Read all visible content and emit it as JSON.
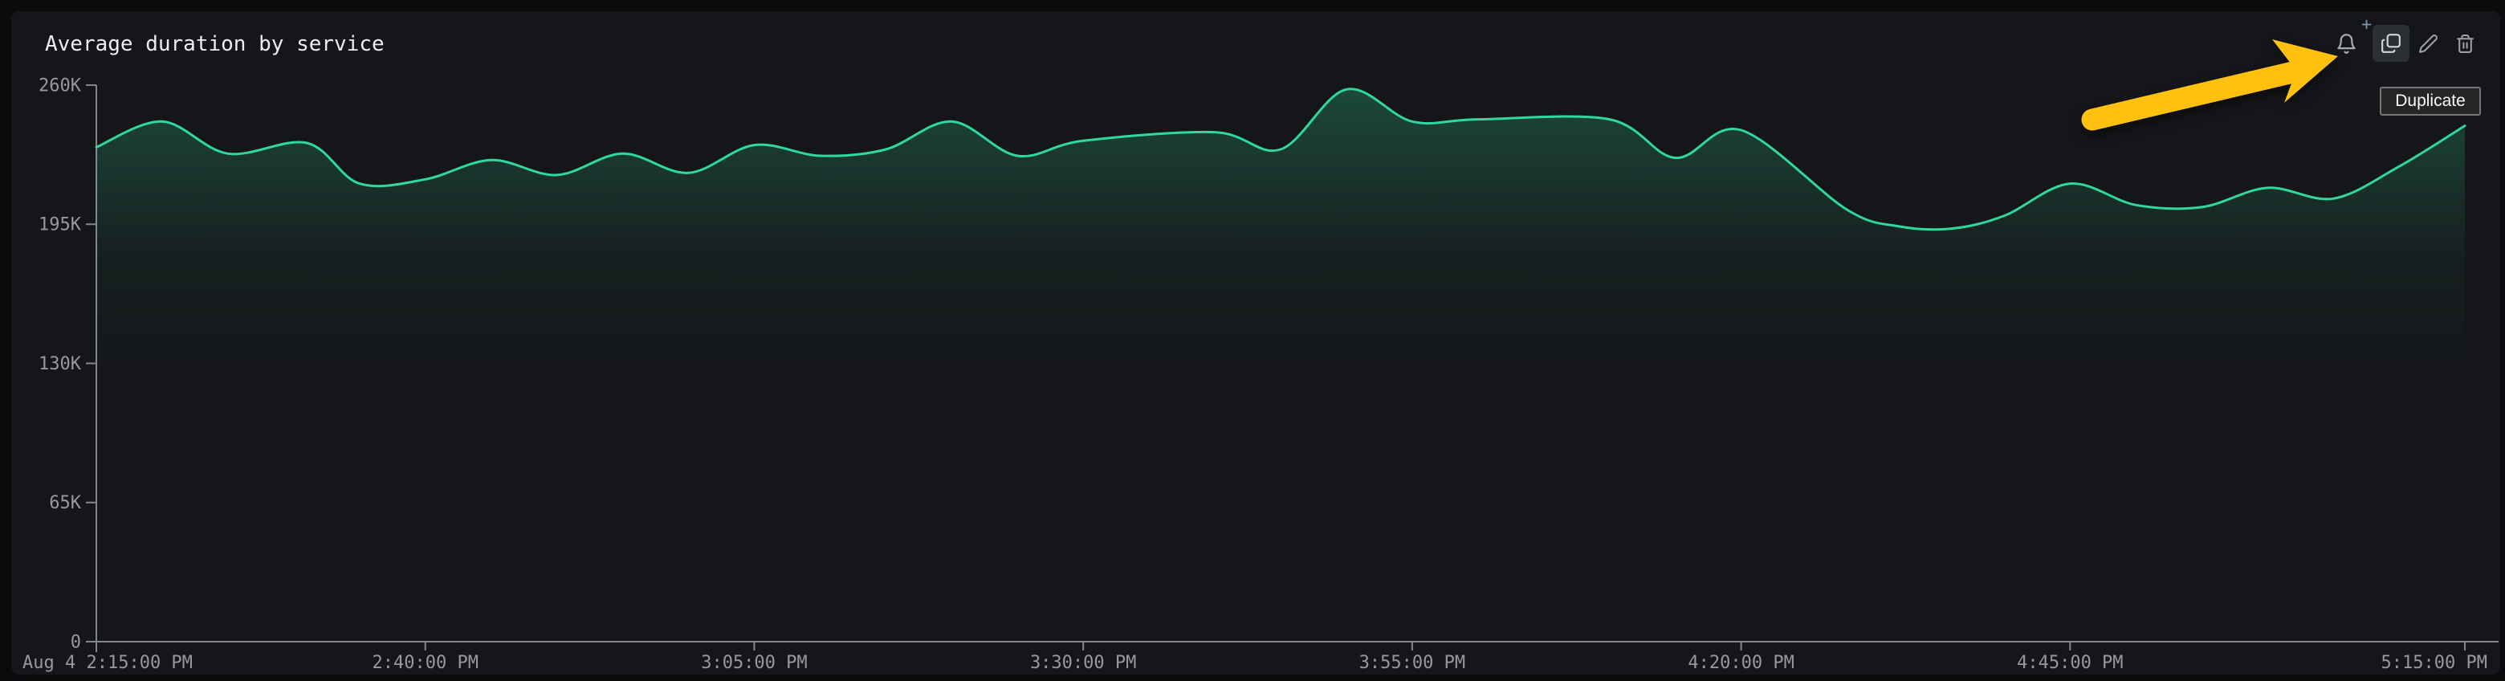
{
  "panel": {
    "title": "Average duration by service",
    "toolbar": {
      "tooltip": "Duplicate",
      "icons": [
        "bell-plus",
        "copy",
        "pencil",
        "trash"
      ],
      "icon_color": "#9ca0a4",
      "bell_color": "#a6aaae",
      "plus_color": "#7e95ad",
      "copy_color": "#d2d5d8",
      "hover_bg": "#2c2f31"
    },
    "annotation_arrow": {
      "color": "#ffc010",
      "points_at": "duplicate-button"
    }
  },
  "chart_data": {
    "type": "line",
    "title": "Average duration by service",
    "xlabel": "",
    "ylabel": "",
    "grid": false,
    "legend": false,
    "x_unit": "time",
    "y_unit": "duration",
    "x_start_label": "Aug 4 2:15:00 PM",
    "x_range_minutes": 180,
    "y_max_k": 260,
    "y_ticks": [
      {
        "label": "260K",
        "v": 260
      },
      {
        "label": "195K",
        "v": 195
      },
      {
        "label": "130K",
        "v": 130
      },
      {
        "label": "65K",
        "v": 65
      },
      {
        "label": "0",
        "v": 0
      }
    ],
    "x_ticks": [
      {
        "label": "2:40:00 PM",
        "m": 25
      },
      {
        "label": "3:05:00 PM",
        "m": 50
      },
      {
        "label": "3:30:00 PM",
        "m": 75
      },
      {
        "label": "3:55:00 PM",
        "m": 100
      },
      {
        "label": "4:20:00 PM",
        "m": 125
      },
      {
        "label": "4:45:00 PM",
        "m": 150
      },
      {
        "label": "5:15:00 PM",
        "m": 180
      }
    ],
    "series": [
      {
        "name": "Average duration",
        "color": "#2fd89c",
        "points_min_valueK": [
          [
            0,
            231
          ],
          [
            5,
            243
          ],
          [
            10,
            228
          ],
          [
            16,
            233
          ],
          [
            20,
            214
          ],
          [
            25,
            216
          ],
          [
            30,
            225
          ],
          [
            35,
            218
          ],
          [
            40,
            228
          ],
          [
            45,
            219
          ],
          [
            50,
            232
          ],
          [
            55,
            227
          ],
          [
            60,
            230
          ],
          [
            65,
            243
          ],
          [
            70,
            227
          ],
          [
            75,
            234
          ],
          [
            85,
            238
          ],
          [
            90,
            230
          ],
          [
            95,
            258
          ],
          [
            100,
            243
          ],
          [
            105,
            244
          ],
          [
            115,
            244
          ],
          [
            120,
            226
          ],
          [
            125,
            239
          ],
          [
            133,
            202
          ],
          [
            137,
            194
          ],
          [
            141,
            193
          ],
          [
            145,
            199
          ],
          [
            150,
            214
          ],
          [
            155,
            204
          ],
          [
            160,
            203
          ],
          [
            165,
            212
          ],
          [
            170,
            207
          ],
          [
            175,
            222
          ],
          [
            180,
            241
          ]
        ]
      }
    ]
  }
}
